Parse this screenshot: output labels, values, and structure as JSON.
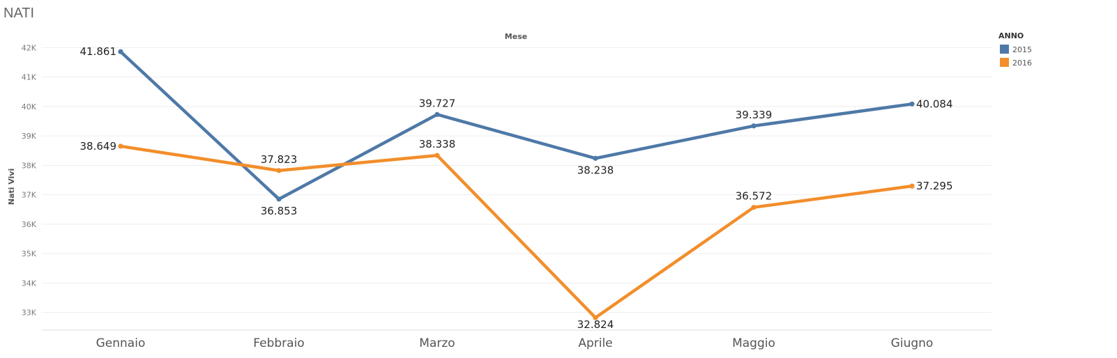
{
  "page": {
    "title": "NATI"
  },
  "chart_data": {
    "type": "line",
    "title": "NATI",
    "xlabel": "Mese",
    "ylabel": "Nati Vivi",
    "categories": [
      "Gennaio",
      "Febbraio",
      "Marzo",
      "Aprile",
      "Maggio",
      "Giugno"
    ],
    "series": [
      {
        "name": "2015",
        "color": "#4e79a7",
        "values": [
          41861,
          36853,
          39727,
          38238,
          39339,
          40084
        ],
        "labels": [
          "41.861",
          "36.853",
          "39.727",
          "38.238",
          "39.339",
          "40.084"
        ]
      },
      {
        "name": "2016",
        "color": "#f28e2b",
        "values": [
          38649,
          37823,
          38338,
          32824,
          36572,
          37295
        ],
        "labels": [
          "38.649",
          "37.823",
          "38.338",
          "32.824",
          "36.572",
          "37.295"
        ]
      }
    ],
    "yticks": [
      33000,
      34000,
      35000,
      36000,
      37000,
      38000,
      39000,
      40000,
      41000,
      42000
    ],
    "ytick_labels": [
      "33K",
      "34K",
      "35K",
      "36K",
      "37K",
      "38K",
      "39K",
      "40K",
      "41K",
      "42K"
    ],
    "ylim": [
      32400,
      42150
    ],
    "grid": true,
    "legend": {
      "title": "ANNO",
      "placement": "top-right"
    }
  }
}
